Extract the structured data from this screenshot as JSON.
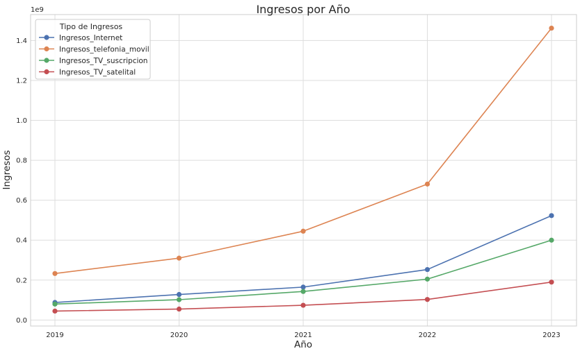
{
  "chart_data": {
    "type": "line",
    "title": "Ingresos por Año",
    "xlabel": "Año",
    "ylabel": "Ingresos",
    "y_offset_label": "1e9",
    "x": [
      "2019",
      "2020",
      "2021",
      "2022",
      "2023"
    ],
    "y_ticks": [
      "0.0",
      "0.2",
      "0.4",
      "0.6",
      "0.8",
      "1.0",
      "1.2",
      "1.4"
    ],
    "y_tick_values": [
      0.0,
      0.2,
      0.4,
      0.6,
      0.8,
      1.0,
      1.2,
      1.4
    ],
    "ylim": [
      -0.03,
      1.53
    ],
    "grid": true,
    "legend": {
      "title": "Tipo de Ingresos",
      "placement": "top-left"
    },
    "series": [
      {
        "name": "Ingresos_Internet",
        "color": "#4c72b0",
        "values": [
          0.088,
          0.128,
          0.165,
          0.253,
          0.523
        ]
      },
      {
        "name": "Ingresos_telefonia_movil",
        "color": "#dd8452",
        "values": [
          0.233,
          0.31,
          0.445,
          0.681,
          1.462
        ]
      },
      {
        "name": "Ingresos_TV_suscripcion",
        "color": "#55a868",
        "values": [
          0.08,
          0.102,
          0.143,
          0.205,
          0.4
        ]
      },
      {
        "name": "Ingresos_TV_satelital",
        "color": "#c44e52",
        "values": [
          0.045,
          0.055,
          0.074,
          0.103,
          0.19
        ]
      }
    ]
  }
}
